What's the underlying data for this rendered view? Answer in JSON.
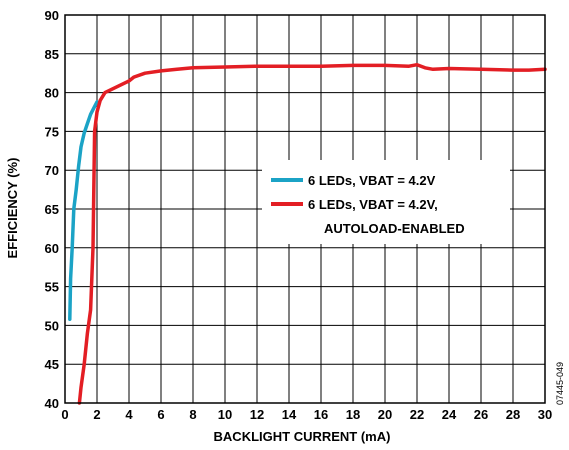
{
  "chart_data": {
    "type": "line",
    "xlabel": "BACKLIGHT CURRENT (mA)",
    "ylabel": "EFFICIENCY (%)",
    "xlim": [
      0,
      30
    ],
    "ylim": [
      40,
      90
    ],
    "xticks": [
      0,
      2,
      4,
      6,
      8,
      10,
      12,
      14,
      16,
      18,
      20,
      22,
      24,
      26,
      28,
      30
    ],
    "yticks": [
      40,
      45,
      50,
      55,
      60,
      65,
      70,
      75,
      80,
      85,
      90
    ],
    "grid": true,
    "legend_position": "center-right",
    "figure_id": "07445-049",
    "series": [
      {
        "name": "6 LEDs, VBAT = 4.2V",
        "color": "#1ba3c6",
        "x": [
          0.3,
          0.35,
          0.45,
          0.55,
          0.7,
          0.85,
          1.0,
          1.2,
          1.4,
          1.6,
          1.8,
          2.0
        ],
        "y": [
          50.8,
          56.0,
          60.0,
          65.0,
          67.5,
          70.5,
          73.0,
          74.8,
          76.0,
          77.2,
          78.0,
          78.8
        ]
      },
      {
        "name": "6 LEDs, VBAT = 4.2V,",
        "name_line2": "AUTOLOAD-ENABLED",
        "color": "#e31e24",
        "x": [
          0.9,
          1.0,
          1.2,
          1.4,
          1.6,
          1.75,
          1.85,
          2.0,
          2.2,
          2.5,
          3.0,
          3.5,
          4.0,
          4.3,
          5.0,
          6.0,
          7.0,
          8.0,
          10.0,
          12.0,
          14.0,
          16.0,
          18.0,
          20.0,
          21.5,
          22.0,
          22.5,
          23.0,
          24.0,
          26.0,
          28.0,
          29.0,
          30.0
        ],
        "y": [
          40.0,
          42.0,
          45.0,
          49.0,
          52.0,
          60.0,
          75.0,
          77.5,
          79.0,
          80.0,
          80.5,
          81.0,
          81.5,
          82.0,
          82.5,
          82.8,
          83.0,
          83.2,
          83.3,
          83.4,
          83.4,
          83.4,
          83.5,
          83.5,
          83.4,
          83.6,
          83.2,
          83.0,
          83.1,
          83.0,
          82.9,
          82.9,
          83.0
        ]
      }
    ]
  }
}
